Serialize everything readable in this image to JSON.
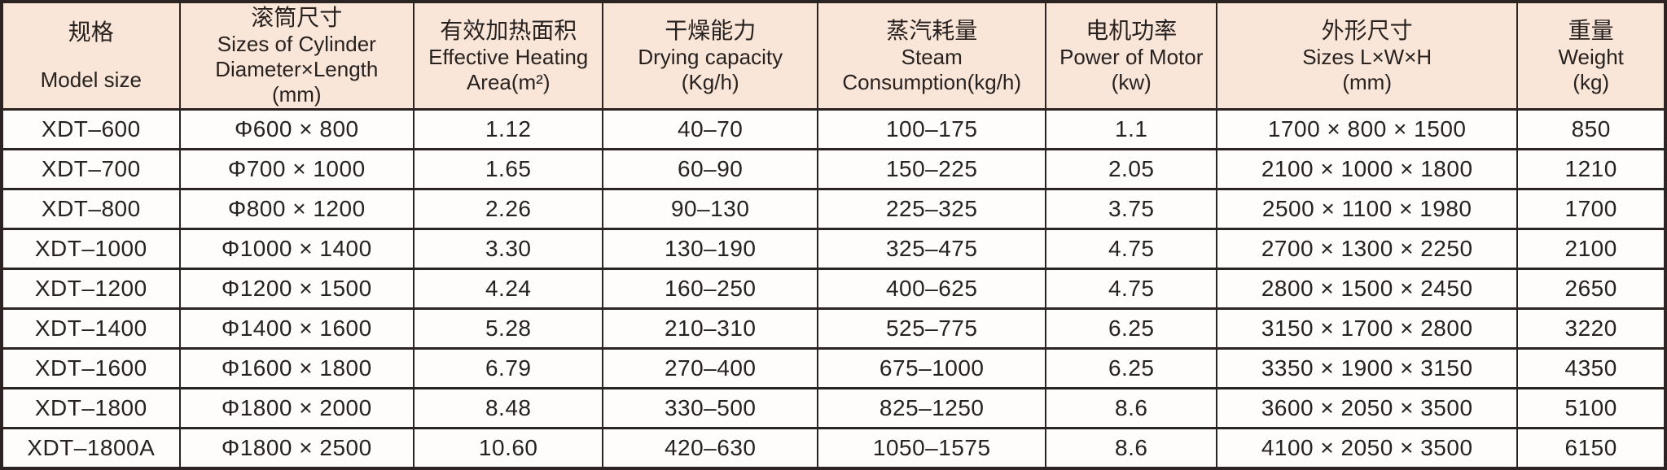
{
  "table": {
    "columns": [
      {
        "id": "model-size",
        "width": "10.70%",
        "lines": [
          "规格",
          "Model size"
        ]
      },
      {
        "id": "cylinder-sizes",
        "width": "14.07%",
        "lines": [
          "滚筒尺寸",
          "Sizes of Cylinder",
          "Diameter×Length",
          "(mm)"
        ]
      },
      {
        "id": "heating-area",
        "width": "11.38%",
        "lines": [
          "有效加热面积",
          "Effective Heating",
          "Area(m²)"
        ]
      },
      {
        "id": "drying-capacity",
        "width": "12.90%",
        "lines": [
          "干燥能力",
          "Drying capacity",
          "(Kg/h)"
        ]
      },
      {
        "id": "steam-consumption",
        "width": "13.73%",
        "lines": [
          "蒸汽耗量",
          "Steam",
          "Consumption(kg/h)"
        ]
      },
      {
        "id": "motor-power",
        "width": "10.26%",
        "lines": [
          "电机功率",
          "Power of Motor",
          "(kw)"
        ]
      },
      {
        "id": "overall-sizes",
        "width": "18.08%",
        "lines": [
          "外形尺寸",
          "Sizes L×W×H",
          "(mm)"
        ]
      },
      {
        "id": "weight",
        "width": "8.89%",
        "lines": [
          "重量",
          "Weight",
          "(kg)"
        ]
      }
    ],
    "rows": [
      [
        "XDT–600",
        "Φ600 × 800",
        "1.12",
        "40–70",
        "100–175",
        "1.1",
        "1700 × 800 × 1500",
        "850"
      ],
      [
        "XDT–700",
        "Φ700 × 1000",
        "1.65",
        "60–90",
        "150–225",
        "2.05",
        "2100 × 1000 × 1800",
        "1210"
      ],
      [
        "XDT–800",
        "Φ800 × 1200",
        "2.26",
        "90–130",
        "225–325",
        "3.75",
        "2500 × 1100 × 1980",
        "1700"
      ],
      [
        "XDT–1000",
        "Φ1000 × 1400",
        "3.30",
        "130–190",
        "325–475",
        "4.75",
        "2700 × 1300 × 2250",
        "2100"
      ],
      [
        "XDT–1200",
        "Φ1200 × 1500",
        "4.24",
        "160–250",
        "400–625",
        "4.75",
        "2800 × 1500 × 2450",
        "2650"
      ],
      [
        "XDT–1400",
        "Φ1400 × 1600",
        "5.28",
        "210–310",
        "525–775",
        "6.25",
        "3150 × 1700 × 2800",
        "3220"
      ],
      [
        "XDT–1600",
        "Φ1600 × 1800",
        "6.79",
        "270–400",
        "675–1000",
        "6.25",
        "3350 × 1900 × 3150",
        "4350"
      ],
      [
        "XDT–1800",
        "Φ1800 × 2000",
        "8.48",
        "330–500",
        "825–1250",
        "8.6",
        "3600 × 2050 × 3500",
        "5100"
      ],
      [
        "XDT–1800A",
        "Φ1800 × 2500",
        "10.60",
        "420–630",
        "1050–1575",
        "8.6",
        "4100 × 2050 × 3500",
        "6150"
      ]
    ]
  },
  "colors": {
    "header_background": "#fae6d8",
    "row_background": "#fffdfc",
    "border": "#2b2422",
    "text": "#272220"
  }
}
